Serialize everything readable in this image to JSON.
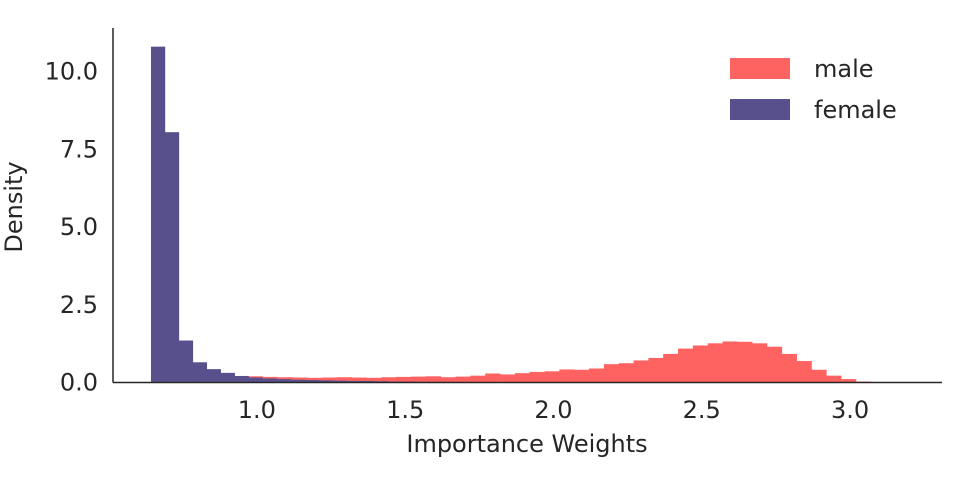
{
  "chart_data": {
    "type": "bar",
    "subtype": "histogram",
    "title": "",
    "xlabel": "Importance Weights",
    "ylabel": "Density",
    "xlim": [
      0.515,
      3.31
    ],
    "ylim": [
      0,
      11.4
    ],
    "xticks": [
      1.0,
      1.5,
      2.0,
      2.5,
      3.0
    ],
    "xtick_labels": [
      "1.0",
      "1.5",
      "2.0",
      "2.5",
      "3.0"
    ],
    "yticks": [
      0,
      2.5,
      5.0,
      7.5,
      10.0
    ],
    "ytick_labels": [
      "0.0",
      "2.5",
      "5.0",
      "7.5",
      "10.0"
    ],
    "grid": false,
    "legend_position": "top-right",
    "series": [
      {
        "name": "male",
        "color": "#ff6361",
        "bin_start": 0.97,
        "bin_width": 0.05,
        "values": [
          0.2,
          0.18,
          0.17,
          0.16,
          0.15,
          0.16,
          0.17,
          0.16,
          0.15,
          0.17,
          0.18,
          0.19,
          0.2,
          0.17,
          0.19,
          0.22,
          0.29,
          0.26,
          0.3,
          0.34,
          0.36,
          0.42,
          0.41,
          0.45,
          0.59,
          0.62,
          0.71,
          0.79,
          0.92,
          1.09,
          1.19,
          1.26,
          1.32,
          1.31,
          1.26,
          1.15,
          0.92,
          0.69,
          0.41,
          0.22,
          0.11,
          0.03
        ]
      },
      {
        "name": "female",
        "color": "#58508d",
        "bin_start": 0.643,
        "bin_width": 0.047,
        "values": [
          10.8,
          8.05,
          1.35,
          0.65,
          0.43,
          0.31,
          0.21,
          0.16,
          0.13,
          0.11,
          0.09,
          0.08,
          0.07,
          0.06,
          0.05,
          0.05,
          0.04,
          0.03,
          0.03,
          0.02,
          0.02,
          0.02,
          0.01,
          0.01,
          0.01,
          0.01,
          0.01,
          0.01
        ]
      }
    ]
  }
}
